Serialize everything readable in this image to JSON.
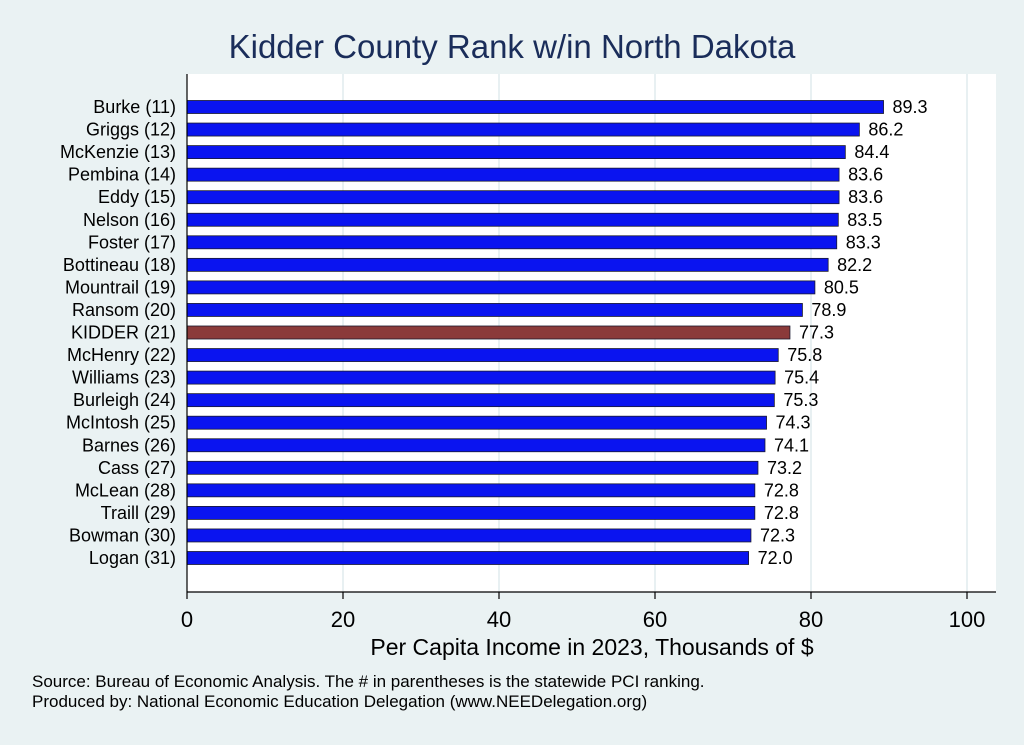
{
  "chart_data": {
    "type": "bar",
    "orientation": "horizontal",
    "title": "Kidder County Rank w/in North Dakota",
    "xlabel": "Per Capita Income in 2023, Thousands of $",
    "xlim": [
      0,
      100
    ],
    "xticks": [
      0,
      20,
      40,
      60,
      80,
      100
    ],
    "grid": true,
    "categories": [
      "Burke (11)",
      "Griggs (12)",
      "McKenzie (13)",
      "Pembina (14)",
      "Eddy (15)",
      "Nelson (16)",
      "Foster (17)",
      "Bottineau (18)",
      "Mountrail (19)",
      "Ransom (20)",
      "KIDDER (21)",
      "McHenry (22)",
      "Williams (23)",
      "Burleigh (24)",
      "McIntosh (25)",
      "Barnes (26)",
      "Cass (27)",
      "McLean (28)",
      "Traill (29)",
      "Bowman (30)",
      "Logan (31)"
    ],
    "values": [
      89.3,
      86.2,
      84.4,
      83.6,
      83.6,
      83.5,
      83.3,
      82.2,
      80.5,
      78.9,
      77.3,
      75.8,
      75.4,
      75.3,
      74.3,
      74.1,
      73.2,
      72.8,
      72.8,
      72.3,
      72.0
    ],
    "value_labels": [
      "89.3",
      "86.2",
      "84.4",
      "83.6",
      "83.6",
      "83.5",
      "83.3",
      "82.2",
      "80.5",
      "78.9",
      "77.3",
      "75.8",
      "75.4",
      "75.3",
      "74.3",
      "74.1",
      "73.2",
      "72.8",
      "72.8",
      "72.3",
      "72.0"
    ],
    "highlight_index": 10,
    "colors": {
      "bar": "#0a14f0",
      "highlight": "#8b3a3a",
      "grid": "#d8e6ea",
      "plot_bg": "#ffffff"
    }
  },
  "footnotes": {
    "source": "Source: Bureau of Economic Analysis. The # in parentheses is the statewide PCI ranking.",
    "produced": "Produced by: National Economic Education Delegation (www.NEEDelegation.org)"
  }
}
